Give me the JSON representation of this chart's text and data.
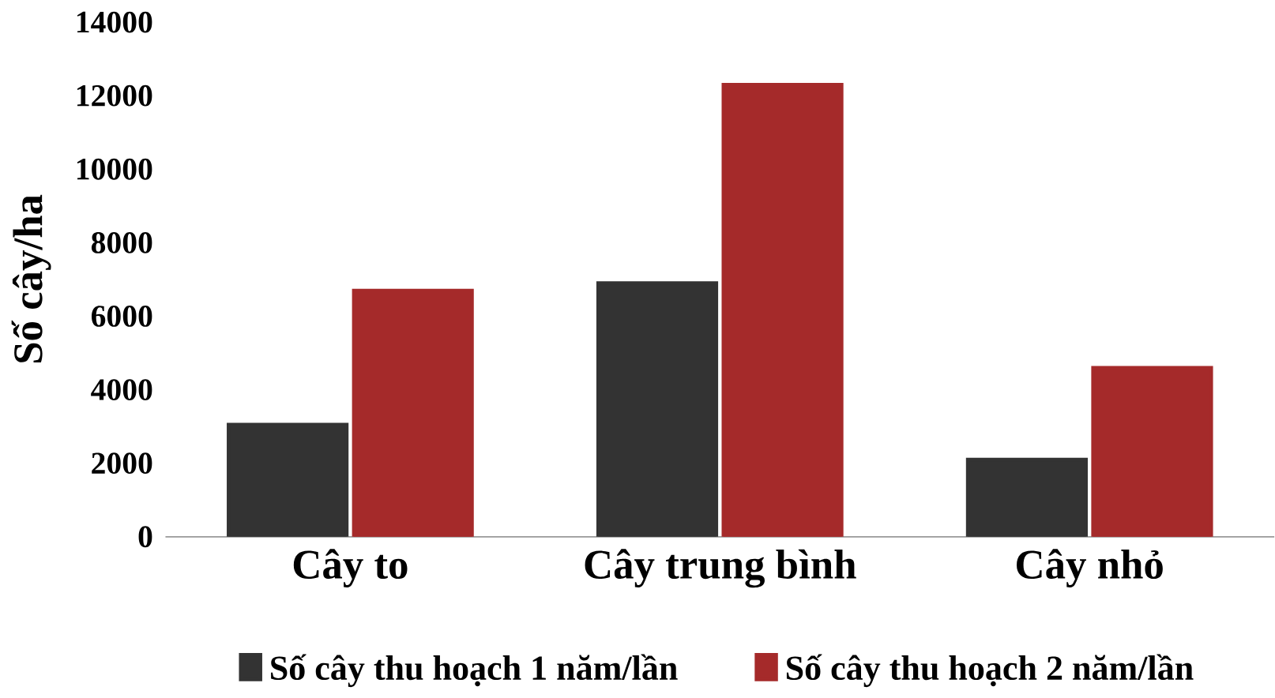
{
  "chart_data": {
    "type": "bar",
    "ylabel": "Số cây/ha",
    "categories": [
      "Cây to",
      "Cây trung bình",
      "Cây nhỏ"
    ],
    "series": [
      {
        "name": "Số cây thu hoạch 1 năm/lần",
        "color": "#333333",
        "values": [
          3050,
          6900,
          2100
        ]
      },
      {
        "name": "Số cây thu hoạch 2 năm/lần",
        "color": "#a52a2a",
        "values": [
          6700,
          12300,
          4600
        ]
      }
    ],
    "ylim": [
      0,
      14000
    ],
    "yticks": [
      0,
      2000,
      4000,
      6000,
      8000,
      10000,
      12000,
      14000
    ],
    "grid": false,
    "legend": "bottom"
  }
}
